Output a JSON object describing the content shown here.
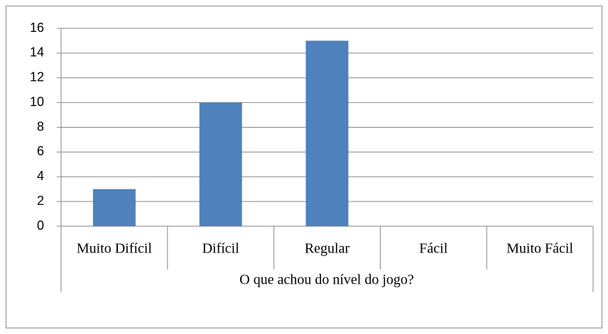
{
  "chart_data": {
    "type": "bar",
    "categories": [
      "Muito Difícil",
      "Difícil",
      "Regular",
      "Fácil",
      "Muito Fácil"
    ],
    "values": [
      3,
      10,
      15,
      0,
      0
    ],
    "color": "#4f81bd",
    "x_label": "O que achou do nível do jogo?",
    "ylim": [
      0,
      16
    ],
    "yticks": [
      0,
      2,
      4,
      6,
      8,
      10,
      12,
      14,
      16
    ],
    "grid": true
  }
}
